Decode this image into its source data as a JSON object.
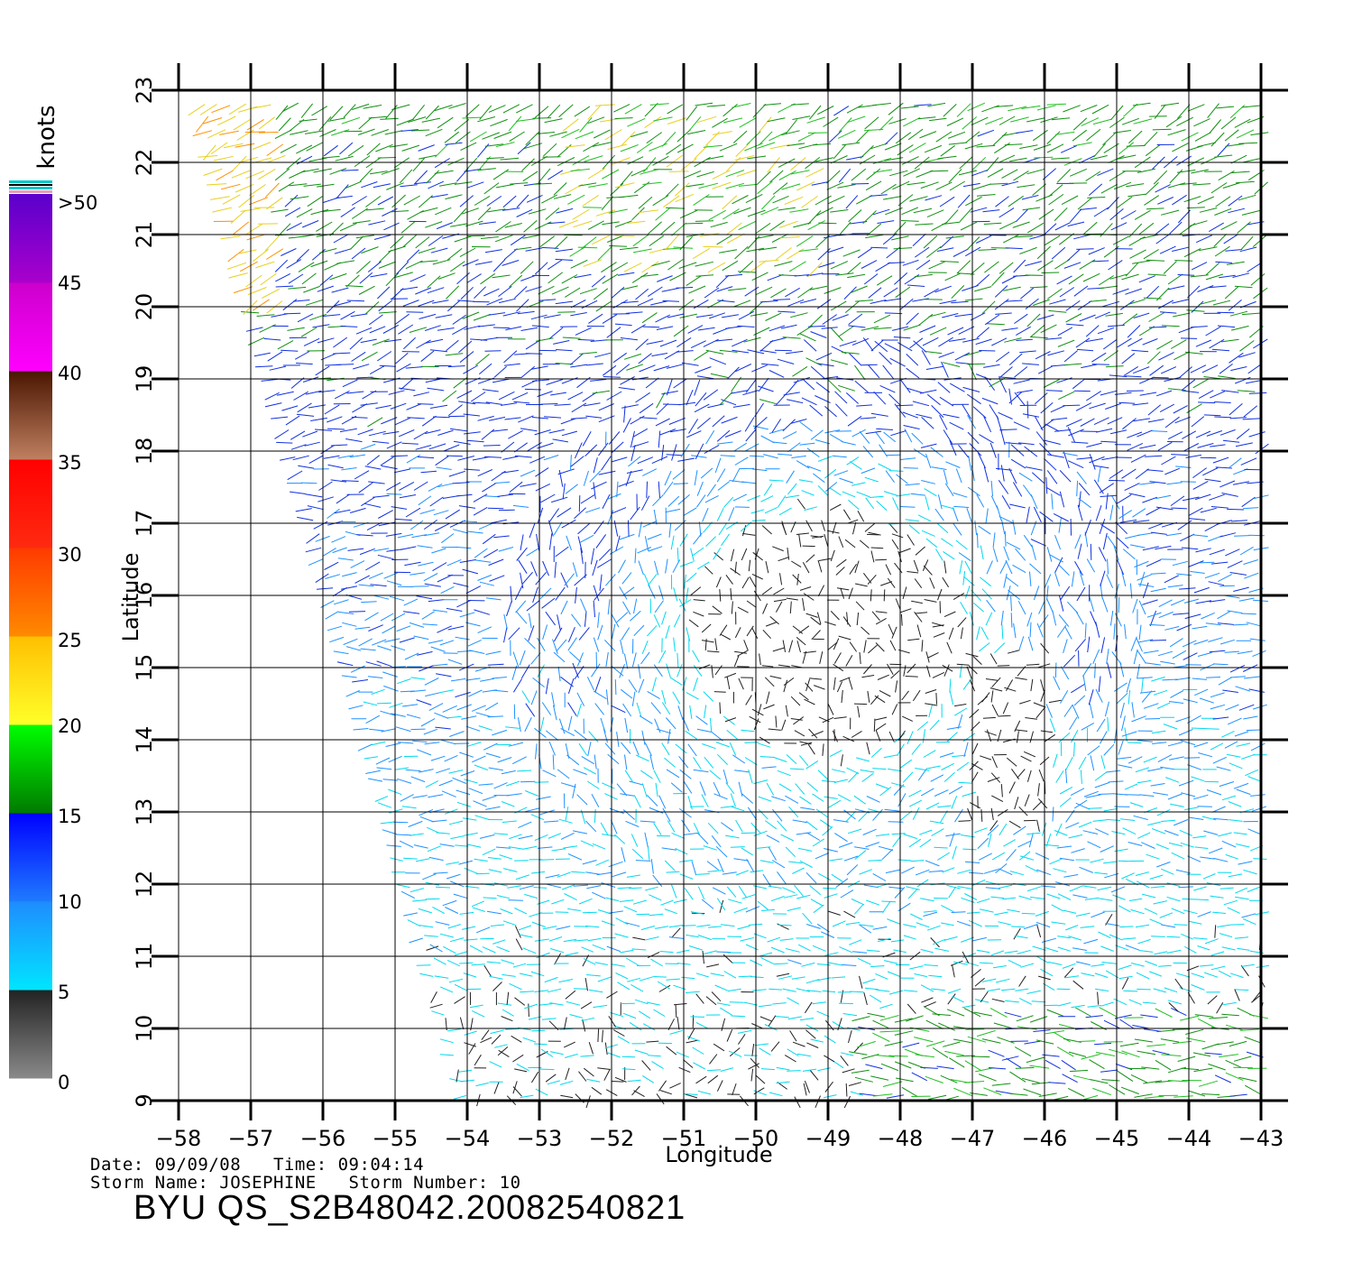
{
  "colorbar": {
    "unit_label": "knots",
    "tick_labels": [
      ">50",
      "45",
      "40",
      "35",
      "30",
      "25",
      "20",
      "15",
      "10",
      "5",
      "0"
    ],
    "segments": [
      {
        "from": 0,
        "to": 5,
        "color_low": "#8a8a8a",
        "color_high": "#222222"
      },
      {
        "from": 5,
        "to": 10,
        "color_low": "#00e5ff",
        "color_high": "#1f8cff"
      },
      {
        "from": 10,
        "to": 15,
        "color_low": "#1f7bff",
        "color_high": "#0000ff"
      },
      {
        "from": 15,
        "to": 20,
        "color_low": "#007a00",
        "color_high": "#00ff00"
      },
      {
        "from": 20,
        "to": 25,
        "color_low": "#ffff2a",
        "color_high": "#ffbf00"
      },
      {
        "from": 25,
        "to": 30,
        "color_low": "#ff8a00",
        "color_high": "#ff3a00"
      },
      {
        "from": 30,
        "to": 35,
        "color_low": "#ff2a10",
        "color_high": "#ff0000"
      },
      {
        "from": 35,
        "to": 40,
        "color_low": "#c08060",
        "color_high": "#4a1500"
      },
      {
        "from": 40,
        "to": 45,
        "color_low": "#ff00ff",
        "color_high": "#cc00cc"
      },
      {
        "from": 45,
        "to": 50,
        "color_low": "#aa00cc",
        "color_high": "#5a00cc"
      }
    ]
  },
  "chart_data": {
    "type": "wind-vector-map",
    "xlabel": "Longitude",
    "ylabel": "Latitude",
    "xlim": [
      -58,
      -43
    ],
    "ylim": [
      9,
      23
    ],
    "x_ticks": [
      "-58",
      "-57",
      "-56",
      "-55",
      "-54",
      "-53",
      "-52",
      "-51",
      "-50",
      "-49",
      "-48",
      "-47",
      "-46",
      "-45",
      "-44",
      "-43"
    ],
    "y_ticks": [
      "9",
      "10",
      "11",
      "12",
      "13",
      "14",
      "15",
      "16",
      "17",
      "18",
      "19",
      "20",
      "21",
      "22",
      "23"
    ],
    "grid": true,
    "swath_west_edge": [
      [
        -57.7,
        23
      ],
      [
        -54.0,
        9
      ]
    ],
    "calm_region_center": [
      -49.0,
      15.5
    ]
  },
  "footer": {
    "date_line": "Date: 09/09/08   Time: 09:04:14",
    "storm_line": "Storm Name: JOSEPHINE   Storm Number: 10",
    "title": "BYU QS_S2B48042.20082540821"
  }
}
